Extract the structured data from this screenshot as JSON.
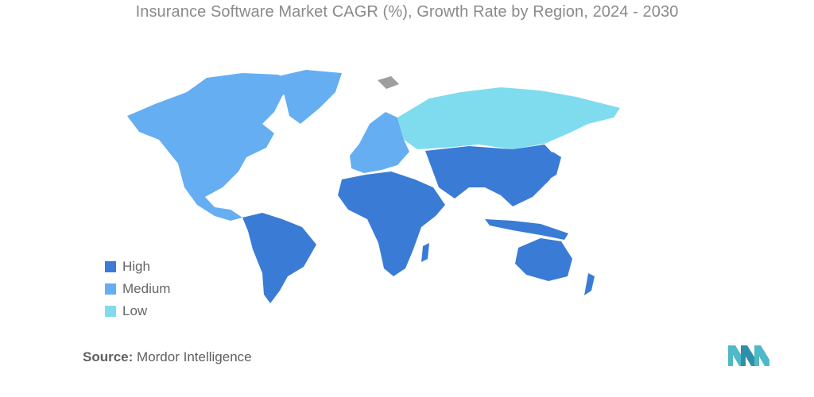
{
  "title": "Insurance Software Market CAGR (%), Growth Rate by Region, 2024 - 2030",
  "legend": [
    {
      "label": "High",
      "color": "#3a7bd5"
    },
    {
      "label": "Medium",
      "color": "#66aef2"
    },
    {
      "label": "Low",
      "color": "#7fdcef"
    }
  ],
  "regions": {
    "north_america": "Medium",
    "europe": "Medium",
    "russia": "Low",
    "asia_pacific": "High",
    "middle_east_africa": "High",
    "latin_america": "High"
  },
  "source": {
    "label": "Source:",
    "value": "Mordor Intelligence"
  },
  "colors": {
    "no_data": "#9e9e9e",
    "logo": "#4fb9c7"
  }
}
